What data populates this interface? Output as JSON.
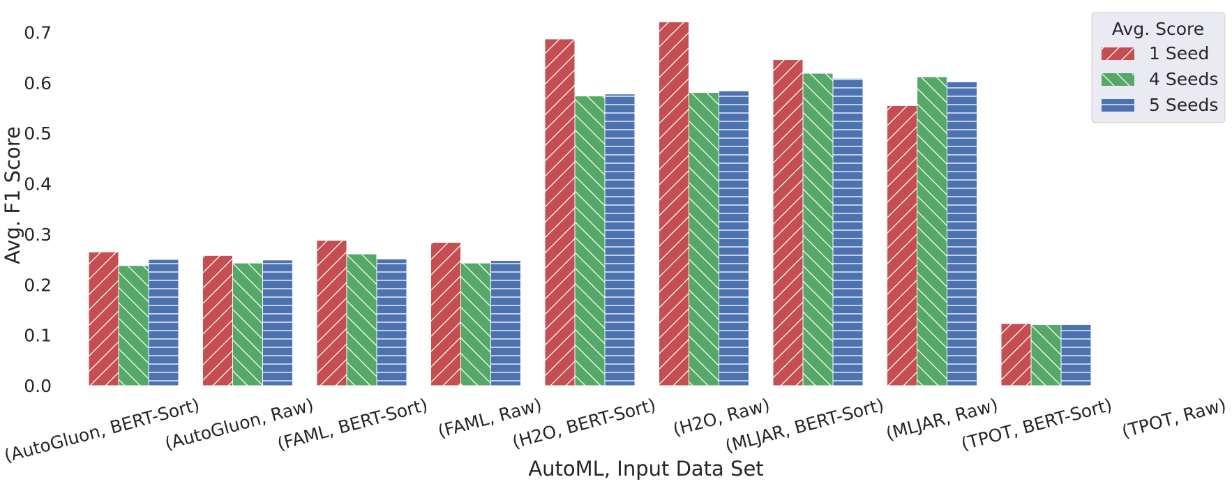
{
  "chart_data": {
    "type": "bar",
    "xlabel": "AutoML, Input Data Set",
    "ylabel": "Avg. F1 Score",
    "ylim": [
      0,
      0.72
    ],
    "yticks": [
      "0.0",
      "0.1",
      "0.2",
      "0.3",
      "0.4",
      "0.5",
      "0.6",
      "0.7"
    ],
    "ytick_values": [
      0.0,
      0.1,
      0.2,
      0.3,
      0.4,
      0.5,
      0.6,
      0.7
    ],
    "grid": false,
    "legend": {
      "title": "Avg. Score",
      "placement": "top-right"
    },
    "categories": [
      "(AutoGluon, BERT-Sort)",
      "(AutoGluon, Raw)",
      "(FAML, BERT-Sort)",
      "(FAML, Raw)",
      "(H2O, BERT-Sort)",
      "(H2O, Raw)",
      "(MLJAR, BERT-Sort)",
      "(MLJAR, Raw)",
      "(TPOT, BERT-Sort)",
      "(TPOT, Raw)"
    ],
    "series": [
      {
        "name": "1 Seed",
        "color": "#c44e52",
        "hatch": "forward-diagonal",
        "values": [
          0.265,
          0.258,
          0.288,
          0.284,
          0.687,
          0.721,
          0.646,
          0.555,
          0.123,
          null
        ]
      },
      {
        "name": "4 Seeds",
        "color": "#55a868",
        "hatch": "back-diagonal",
        "values": [
          0.238,
          0.243,
          0.261,
          0.243,
          0.574,
          0.581,
          0.619,
          0.612,
          0.121,
          null
        ]
      },
      {
        "name": "5 Seeds",
        "color": "#4c72b0",
        "hatch": "horizontal",
        "values": [
          0.25,
          0.249,
          0.251,
          0.248,
          0.578,
          0.584,
          0.609,
          0.602,
          0.121,
          null
        ]
      }
    ]
  }
}
